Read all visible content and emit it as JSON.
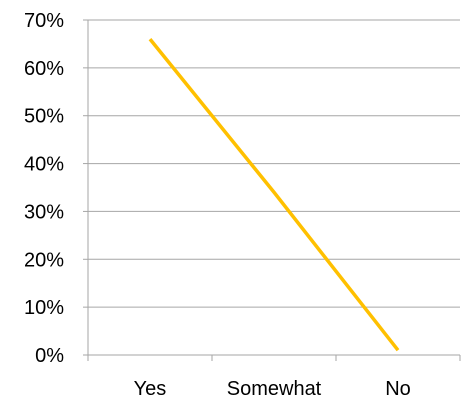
{
  "chart_data": {
    "type": "line",
    "categories": [
      "Yes",
      "Somewhat",
      "No"
    ],
    "y_ticks": [
      "0%",
      "10%",
      "20%",
      "30%",
      "40%",
      "50%",
      "60%",
      "70%"
    ],
    "ylim": [
      0,
      0.7
    ],
    "grid": true,
    "legend": "none",
    "series": [
      {
        "values": [
          0.66,
          0.34,
          0.01
        ],
        "color": "#FFC000"
      }
    ]
  },
  "colors": {
    "gridline": "#A6A6A6",
    "axis": "#A6A6A6",
    "text": "#000000"
  }
}
